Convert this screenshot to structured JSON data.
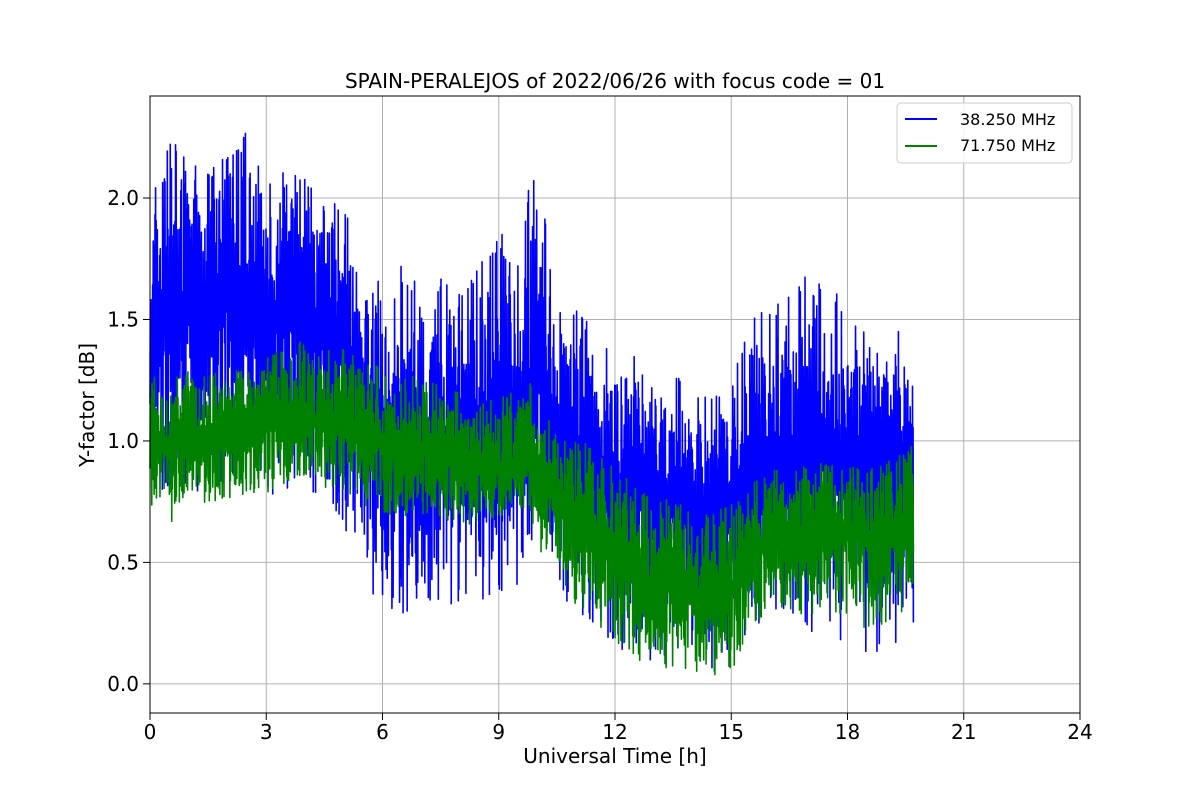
{
  "chart_data": {
    "type": "line",
    "title": "SPAIN-PERALEJOS of 2022/06/26 with focus code = 01",
    "xlabel": "Universal Time [h]",
    "ylabel": "Y-factor [dB]",
    "xlim": [
      0,
      24
    ],
    "ylim": [
      -0.12,
      2.42
    ],
    "xticks": [
      0,
      3,
      6,
      9,
      12,
      15,
      18,
      21,
      24
    ],
    "yticks": [
      0.0,
      0.5,
      1.0,
      1.5,
      2.0
    ],
    "ytick_labels": [
      "0.0",
      "0.5",
      "1.0",
      "1.5",
      "2.0"
    ],
    "grid": true,
    "legend_position": "top-right",
    "series": [
      {
        "name": "38.250 MHz",
        "color": "#0000ff",
        "x": [
          0,
          0.5,
          1,
          1.5,
          2,
          2.5,
          3,
          3.5,
          4,
          4.5,
          5,
          5.3,
          5.5,
          6,
          6.5,
          7,
          7.5,
          8,
          8.5,
          9,
          9.5,
          9.8,
          10,
          10.5,
          11,
          11.5,
          12,
          12.5,
          13,
          13.5,
          14,
          14.5,
          15,
          15.5,
          16,
          16.5,
          17,
          17.5,
          18,
          18.5,
          19,
          19.5,
          19.7
        ],
        "y_min": [
          0.8,
          0.8,
          0.8,
          0.78,
          0.82,
          0.82,
          0.75,
          0.78,
          0.8,
          0.75,
          0.65,
          0.55,
          0.3,
          0.33,
          0.27,
          0.31,
          0.3,
          0.33,
          0.32,
          0.36,
          0.38,
          0.42,
          0.65,
          0.38,
          0.3,
          0.22,
          0.15,
          0.1,
          0.08,
          0.12,
          0.05,
          0.03,
          0.12,
          0.2,
          0.3,
          0.25,
          0.18,
          0.2,
          0.15,
          0.12,
          0.14,
          0.2,
          0.25
        ],
        "y_mean": [
          1.5,
          1.55,
          1.55,
          1.52,
          1.55,
          1.55,
          1.5,
          1.55,
          1.5,
          1.45,
          1.4,
          1.35,
          1.1,
          1.05,
          0.98,
          1.0,
          1.02,
          1.0,
          1.05,
          1.0,
          1.1,
          1.2,
          1.3,
          1.05,
          0.95,
          0.9,
          0.8,
          0.85,
          0.8,
          0.8,
          0.72,
          0.7,
          0.75,
          0.8,
          0.95,
          0.95,
          1.0,
          1.0,
          0.92,
          0.9,
          0.9,
          0.95,
          1.0
        ],
        "y_max": [
          2.0,
          2.25,
          2.2,
          2.1,
          2.2,
          2.28,
          2.05,
          2.15,
          2.1,
          1.98,
          1.98,
          1.85,
          1.6,
          1.7,
          1.72,
          1.65,
          1.68,
          1.65,
          1.72,
          1.88,
          1.72,
          2.12,
          2.15,
          1.55,
          1.55,
          1.45,
          1.4,
          1.35,
          1.25,
          1.28,
          1.22,
          1.2,
          1.25,
          1.5,
          1.55,
          1.6,
          1.75,
          1.65,
          1.55,
          1.45,
          1.35,
          1.55,
          1.55
        ]
      },
      {
        "name": "71.750 MHz",
        "color": "#008000",
        "x": [
          0,
          0.5,
          1,
          1.5,
          2,
          2.5,
          3,
          3.5,
          4,
          4.5,
          5,
          5.3,
          5.5,
          6,
          6.5,
          7,
          7.5,
          8,
          8.5,
          9,
          9.5,
          9.8,
          10,
          10.5,
          11,
          11.5,
          12,
          12.5,
          13,
          13.5,
          14,
          14.5,
          15,
          15.5,
          16,
          16.5,
          17,
          17.5,
          18,
          18.5,
          19,
          19.5,
          19.7
        ],
        "y_min": [
          0.68,
          0.66,
          0.72,
          0.75,
          0.76,
          0.78,
          0.78,
          0.77,
          0.82,
          0.8,
          0.8,
          0.75,
          0.72,
          0.7,
          0.68,
          0.7,
          0.68,
          0.66,
          0.65,
          0.68,
          0.7,
          0.72,
          0.55,
          0.45,
          0.32,
          0.25,
          0.18,
          0.1,
          0.08,
          0.06,
          0.05,
          0.02,
          0.04,
          0.2,
          0.32,
          0.3,
          0.28,
          0.3,
          0.28,
          0.22,
          0.25,
          0.3,
          0.35
        ],
        "y_mean": [
          1.0,
          0.98,
          1.02,
          1.0,
          1.05,
          1.05,
          1.08,
          1.08,
          1.1,
          1.08,
          1.1,
          1.05,
          1.0,
          1.0,
          0.95,
          0.98,
          0.95,
          0.92,
          0.9,
          0.88,
          0.9,
          0.95,
          0.85,
          0.8,
          0.7,
          0.62,
          0.55,
          0.45,
          0.4,
          0.42,
          0.38,
          0.35,
          0.4,
          0.52,
          0.62,
          0.6,
          0.62,
          0.65,
          0.62,
          0.6,
          0.62,
          0.65,
          0.68
        ],
        "y_max": [
          1.3,
          1.25,
          1.3,
          1.28,
          1.3,
          1.3,
          1.35,
          1.38,
          1.42,
          1.38,
          1.38,
          1.35,
          1.35,
          1.3,
          1.25,
          1.28,
          1.22,
          1.2,
          1.15,
          1.18,
          1.22,
          1.25,
          1.1,
          1.08,
          1.02,
          0.98,
          0.92,
          0.82,
          0.78,
          0.75,
          0.72,
          0.7,
          0.75,
          0.82,
          0.88,
          0.88,
          0.9,
          0.92,
          0.9,
          0.88,
          0.92,
          0.95,
          1.02
        ]
      }
    ]
  }
}
